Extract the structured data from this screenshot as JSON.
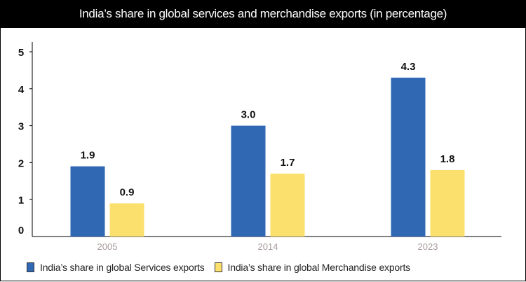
{
  "chart_data": {
    "type": "bar",
    "title": "India’s share in global services and merchandise exports (in percentage)",
    "categories": [
      "2005",
      "2014",
      "2023"
    ],
    "series": [
      {
        "name": "India’s share in global Services exports",
        "values": [
          1.9,
          3.0,
          4.3
        ],
        "labels": [
          "1.9",
          "3.0",
          "4.3"
        ],
        "color": "#3068b4"
      },
      {
        "name": "India’s share in global Merchandise exports",
        "values": [
          0.9,
          1.7,
          1.8
        ],
        "labels": [
          "0.9",
          "1.7",
          "1.8"
        ],
        "color": "#fbe06e"
      }
    ],
    "yticks": [
      "0",
      "1",
      "2",
      "3",
      "4",
      "5"
    ],
    "ylim": [
      0,
      5
    ],
    "xlabel": "",
    "ylabel": "",
    "grid": false,
    "legend": "bottom-left"
  }
}
